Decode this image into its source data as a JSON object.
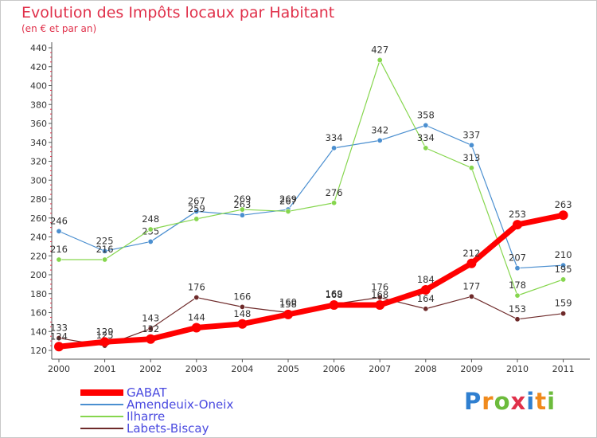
{
  "header": {
    "title": "Evolution des Impôts locaux par Habitant",
    "subtitle": "(en € et par an)"
  },
  "brand": {
    "letters": [
      "P",
      "r",
      "o",
      "x",
      "i",
      "t",
      "i"
    ],
    "colors": [
      "#2f7fd0",
      "#f08a1c",
      "#6cbb3c",
      "#e0304a",
      "#2f7fd0",
      "#f08a1c",
      "#6cbb3c"
    ]
  },
  "chart_data": {
    "type": "line",
    "title": "Evolution des Impôts locaux par Habitant",
    "subtitle": "(en € et par an)",
    "xlabel": "",
    "ylabel": "",
    "x": [
      "2000",
      "2001",
      "2002",
      "2003",
      "2004",
      "2005",
      "2006",
      "2007",
      "2008",
      "2009",
      "2010",
      "2011"
    ],
    "ylim": [
      120,
      440
    ],
    "yticks": [
      120,
      140,
      160,
      180,
      200,
      220,
      240,
      260,
      280,
      300,
      320,
      340,
      360,
      380,
      400,
      420,
      440
    ],
    "grid": false,
    "legend_position": "bottom-left",
    "series": [
      {
        "name": "GABAT",
        "color": "#ff0000",
        "emphasis": true,
        "values": [
          124,
          129,
          132,
          144,
          148,
          158,
          168,
          168,
          184,
          212,
          253,
          263
        ],
        "labels": [
          "124",
          "129",
          "132",
          "144",
          "148",
          "158",
          "168",
          "168",
          "184",
          "212",
          "253",
          "263"
        ]
      },
      {
        "name": "Amendeuix-Oneix",
        "color": "#4b8fd0",
        "emphasis": false,
        "values": [
          246,
          225,
          235,
          267,
          263,
          269,
          334,
          342,
          358,
          337,
          207,
          210
        ],
        "labels": [
          "246",
          "225",
          "235",
          "267",
          "263",
          "269",
          "334",
          "342",
          "358",
          "337",
          "207",
          "210"
        ]
      },
      {
        "name": "Ilharre",
        "color": "#86d64e",
        "emphasis": false,
        "values": [
          216,
          216,
          248,
          259,
          269,
          267,
          276,
          427,
          334,
          313,
          178,
          195
        ],
        "labels": [
          "216",
          "216",
          "248",
          "259",
          "269",
          "267",
          "276",
          "427",
          "334",
          "313",
          "178",
          "195"
        ]
      },
      {
        "name": "Labets-Biscay",
        "color": "#6e2a2a",
        "emphasis": false,
        "values": [
          133,
          125,
          143,
          176,
          166,
          160,
          169,
          176,
          164,
          177,
          153,
          159
        ],
        "labels": [
          "133",
          "125",
          "143",
          "176",
          "166",
          "160",
          "169",
          "176",
          "164",
          "177",
          "153",
          "159"
        ]
      }
    ]
  }
}
